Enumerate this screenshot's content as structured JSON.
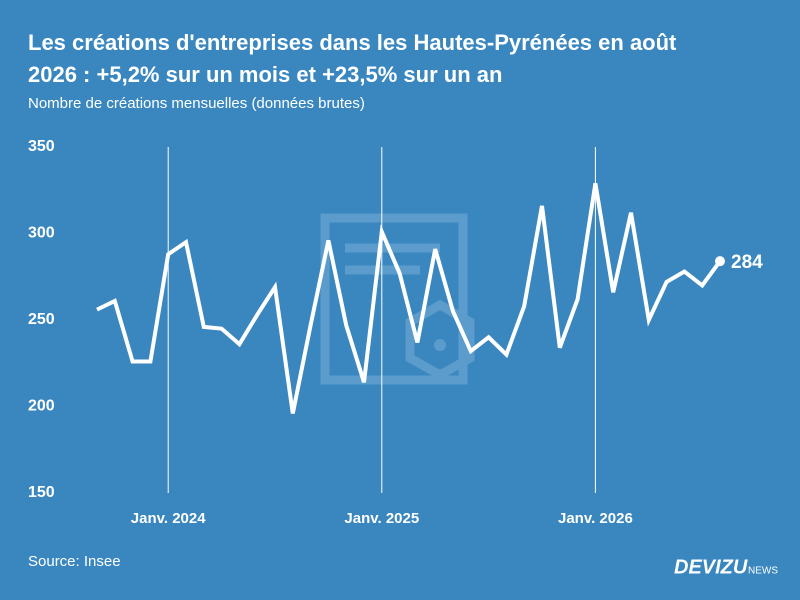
{
  "chart_data": {
    "type": "line",
    "title": [
      "Les créations d'entreprises dans les Hautes-Pyrénées en août",
      "2026 : +5,2% sur un mois et +23,5% sur un an"
    ],
    "subtitle": "Nombre de créations mensuelles (données brutes)",
    "source": "Source: Insee",
    "brand": {
      "name": "DEVIZU",
      "suffix": "NEWS"
    },
    "categories": [
      null,
      null,
      null,
      null,
      "Janv. 2024",
      null,
      null,
      null,
      null,
      null,
      null,
      null,
      null,
      null,
      null,
      null,
      "Janv. 2025",
      null,
      null,
      null,
      null,
      null,
      null,
      null,
      null,
      null,
      null,
      null,
      "Janv. 2026",
      null,
      null,
      null,
      null,
      null,
      null,
      null
    ],
    "values": [
      256,
      261,
      226,
      226,
      288,
      295,
      246,
      245,
      236,
      253,
      269,
      196,
      247,
      296,
      247,
      214,
      301,
      277,
      237,
      291,
      255,
      232,
      240,
      230,
      258,
      316,
      234,
      262,
      329,
      266,
      312,
      250,
      272,
      278,
      270,
      284
    ],
    "color": "#ffffff",
    "ylim": [
      150,
      350
    ],
    "yticks": [
      150,
      200,
      250,
      300,
      350
    ]
  }
}
